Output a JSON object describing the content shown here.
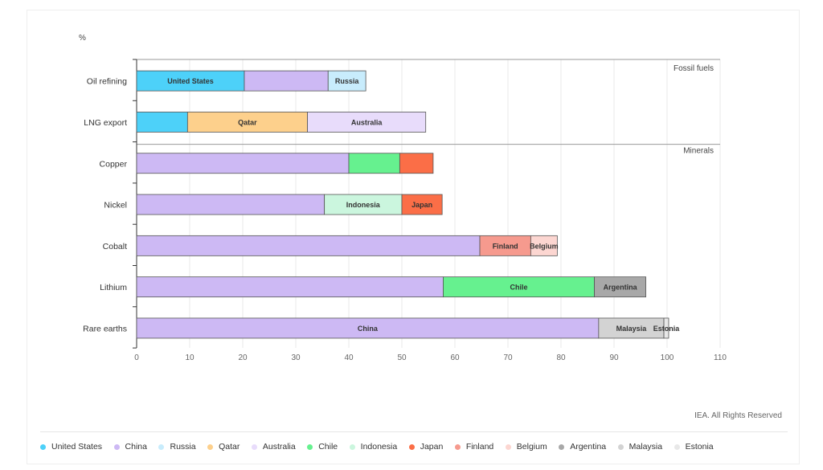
{
  "chart_data": {
    "type": "bar",
    "orientation": "horizontal",
    "stacked": true,
    "ylabel": "%",
    "xlim": [
      0,
      110
    ],
    "xticks": [
      0,
      10,
      20,
      30,
      40,
      50,
      60,
      70,
      80,
      90,
      100,
      110
    ],
    "grid": true,
    "legend_position": "bottom",
    "groups": [
      {
        "name": "Fossil fuels",
        "categories": [
          "Oil refining",
          "LNG export"
        ]
      },
      {
        "name": "Minerals",
        "categories": [
          "Copper",
          "Nickel",
          "Cobalt",
          "Lithium",
          "Rare earths"
        ]
      }
    ],
    "series": [
      {
        "name": "United States",
        "color": "#4dd1f9"
      },
      {
        "name": "China",
        "color": "#cdb9f4"
      },
      {
        "name": "Russia",
        "color": "#c8ecfc"
      },
      {
        "name": "Qatar",
        "color": "#fdd08c"
      },
      {
        "name": "Australia",
        "color": "#e8dcfb"
      },
      {
        "name": "Chile",
        "color": "#66f18f"
      },
      {
        "name": "Indonesia",
        "color": "#cbf6de"
      },
      {
        "name": "Japan",
        "color": "#fb6e47"
      },
      {
        "name": "Finland",
        "color": "#f69a8e"
      },
      {
        "name": "Belgium",
        "color": "#fcd6d1"
      },
      {
        "name": "Argentina",
        "color": "#a8a8a8"
      },
      {
        "name": "Malaysia",
        "color": "#d3d3d3"
      },
      {
        "name": "Estonia",
        "color": "#e8e8e8"
      }
    ],
    "bars": [
      {
        "category": "Oil refining",
        "segments": [
          {
            "country": "United States",
            "value": 20.3,
            "label": "United States"
          },
          {
            "country": "China",
            "value": 15.8,
            "label": ""
          },
          {
            "country": "Russia",
            "value": 7.1,
            "label": "Russia"
          }
        ]
      },
      {
        "category": "LNG export",
        "segments": [
          {
            "country": "United States",
            "value": 9.6,
            "label": ""
          },
          {
            "country": "Qatar",
            "value": 22.6,
            "label": "Qatar"
          },
          {
            "country": "Australia",
            "value": 22.3,
            "label": "Australia"
          }
        ]
      },
      {
        "category": "Copper",
        "segments": [
          {
            "country": "China",
            "value": 40.0,
            "label": ""
          },
          {
            "country": "Chile",
            "value": 9.6,
            "label": ""
          },
          {
            "country": "Japan",
            "value": 6.3,
            "label": ""
          }
        ]
      },
      {
        "category": "Nickel",
        "segments": [
          {
            "country": "China",
            "value": 35.4,
            "label": ""
          },
          {
            "country": "Indonesia",
            "value": 14.6,
            "label": "Indonesia"
          },
          {
            "country": "Japan",
            "value": 7.6,
            "label": "Japan"
          }
        ]
      },
      {
        "category": "Cobalt",
        "segments": [
          {
            "country": "China",
            "value": 64.7,
            "label": ""
          },
          {
            "country": "Finland",
            "value": 9.6,
            "label": "Finland"
          },
          {
            "country": "Belgium",
            "value": 5.0,
            "label": "Belgium"
          }
        ]
      },
      {
        "category": "Lithium",
        "segments": [
          {
            "country": "China",
            "value": 57.8,
            "label": ""
          },
          {
            "country": "Chile",
            "value": 28.5,
            "label": "Chile"
          },
          {
            "country": "Argentina",
            "value": 9.7,
            "label": "Argentina"
          }
        ]
      },
      {
        "category": "Rare earths",
        "segments": [
          {
            "country": "China",
            "value": 87.1,
            "label": "China"
          },
          {
            "country": "Malaysia",
            "value": 12.3,
            "label": "Malaysia"
          },
          {
            "country": "Estonia",
            "value": 0.9,
            "label": "Estonia"
          }
        ]
      }
    ]
  },
  "credit": "IEA. All Rights Reserved"
}
